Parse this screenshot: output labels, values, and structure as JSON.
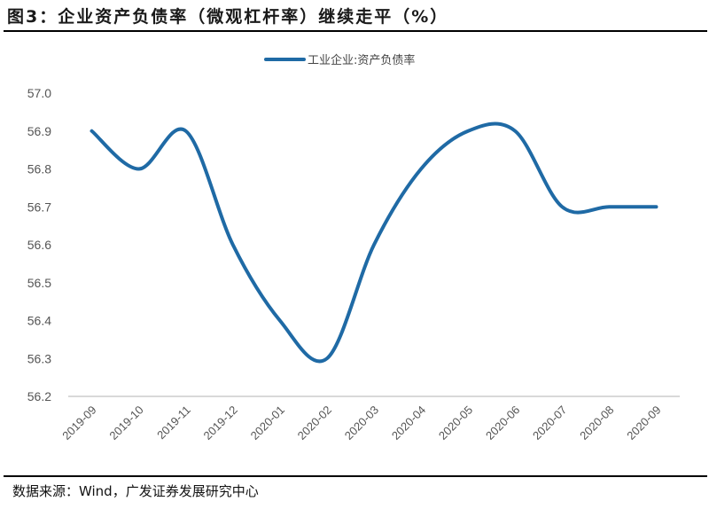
{
  "header": {
    "title": "图3：企业资产负债率（微观杠杆率）继续走平（%）"
  },
  "footer": {
    "source": "数据来源：Wind，广发证券发展研究中心"
  },
  "colors": {
    "series": "#1f6aa5",
    "axis": "#d9d9d9",
    "tick_text": "#555555"
  },
  "chart_data": {
    "type": "line",
    "title": "图3：企业资产负债率（微观杠杆率）继续走平（%）",
    "xlabel": "",
    "ylabel": "",
    "ylim": [
      56.2,
      57.0
    ],
    "yticks": [
      "57.0",
      "56.9",
      "56.8",
      "56.7",
      "56.6",
      "56.5",
      "56.4",
      "56.3",
      "56.2"
    ],
    "grid": false,
    "legend_position": "top",
    "smoothed": true,
    "categories": [
      "2019-09",
      "2019-10",
      "2019-11",
      "2019-12",
      "2020-01",
      "2020-02",
      "2020-03",
      "2020-04",
      "2020-05",
      "2020-06",
      "2020-07",
      "2020-08",
      "2020-09"
    ],
    "series": [
      {
        "name": "工业企业:资产负债率",
        "values": [
          56.9,
          56.8,
          56.9,
          56.6,
          56.4,
          56.3,
          56.6,
          56.8,
          56.9,
          56.9,
          56.7,
          56.7,
          56.7
        ]
      }
    ]
  }
}
